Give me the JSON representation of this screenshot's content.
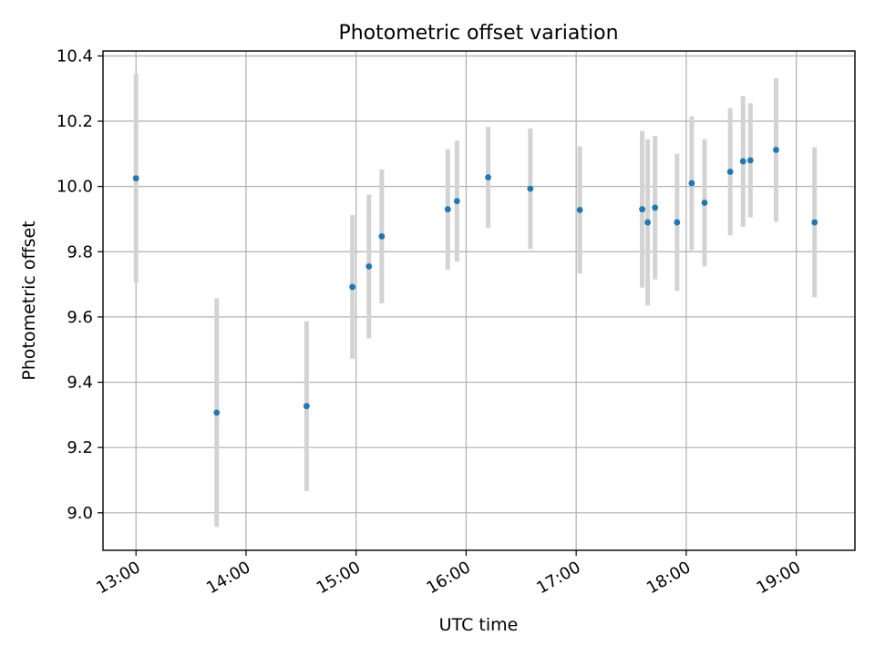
{
  "chart_data": {
    "type": "scatter",
    "title": "Photometric offset variation",
    "xlabel": "UTC time",
    "ylabel": "Photometric offset",
    "x_ticks": [
      "13:00",
      "14:00",
      "15:00",
      "16:00",
      "17:00",
      "18:00",
      "19:00"
    ],
    "y_ticks": [
      "9.0",
      "9.2",
      "9.4",
      "9.6",
      "9.8",
      "10.0",
      "10.2",
      "10.4"
    ],
    "xlim": [
      "12:42",
      "19:32"
    ],
    "ylim": [
      8.885,
      10.415
    ],
    "grid": true,
    "legend": "none",
    "colors": {
      "point": "#1f77b4",
      "errorbar": "#d3d3d3",
      "grid": "#b0b0b0"
    },
    "series": [
      {
        "points": [
          {
            "x": "13:00",
            "y": 10.025,
            "yerr": 0.32
          },
          {
            "x": "13:44",
            "y": 9.307,
            "yerr": 0.35
          },
          {
            "x": "14:33",
            "y": 9.327,
            "yerr": 0.26
          },
          {
            "x": "14:58",
            "y": 9.692,
            "yerr": 0.22
          },
          {
            "x": "15:07",
            "y": 9.755,
            "yerr": 0.22
          },
          {
            "x": "15:14",
            "y": 9.847,
            "yerr": 0.205
          },
          {
            "x": "15:50",
            "y": 9.93,
            "yerr": 0.185
          },
          {
            "x": "15:55",
            "y": 9.955,
            "yerr": 0.185
          },
          {
            "x": "16:12",
            "y": 10.028,
            "yerr": 0.155
          },
          {
            "x": "16:35",
            "y": 9.993,
            "yerr": 0.185
          },
          {
            "x": "17:02",
            "y": 9.928,
            "yerr": 0.195
          },
          {
            "x": "17:36",
            "y": 9.93,
            "yerr": 0.24
          },
          {
            "x": "17:39",
            "y": 9.89,
            "yerr": 0.255
          },
          {
            "x": "17:43",
            "y": 9.935,
            "yerr": 0.22
          },
          {
            "x": "17:55",
            "y": 9.89,
            "yerr": 0.21
          },
          {
            "x": "18:03",
            "y": 10.01,
            "yerr": 0.205
          },
          {
            "x": "18:10",
            "y": 9.95,
            "yerr": 0.195
          },
          {
            "x": "18:24",
            "y": 10.045,
            "yerr": 0.195
          },
          {
            "x": "18:31",
            "y": 10.077,
            "yerr": 0.2
          },
          {
            "x": "18:35",
            "y": 10.08,
            "yerr": 0.175
          },
          {
            "x": "18:49",
            "y": 10.112,
            "yerr": 0.22
          },
          {
            "x": "19:10",
            "y": 9.89,
            "yerr": 0.23
          }
        ]
      }
    ]
  }
}
